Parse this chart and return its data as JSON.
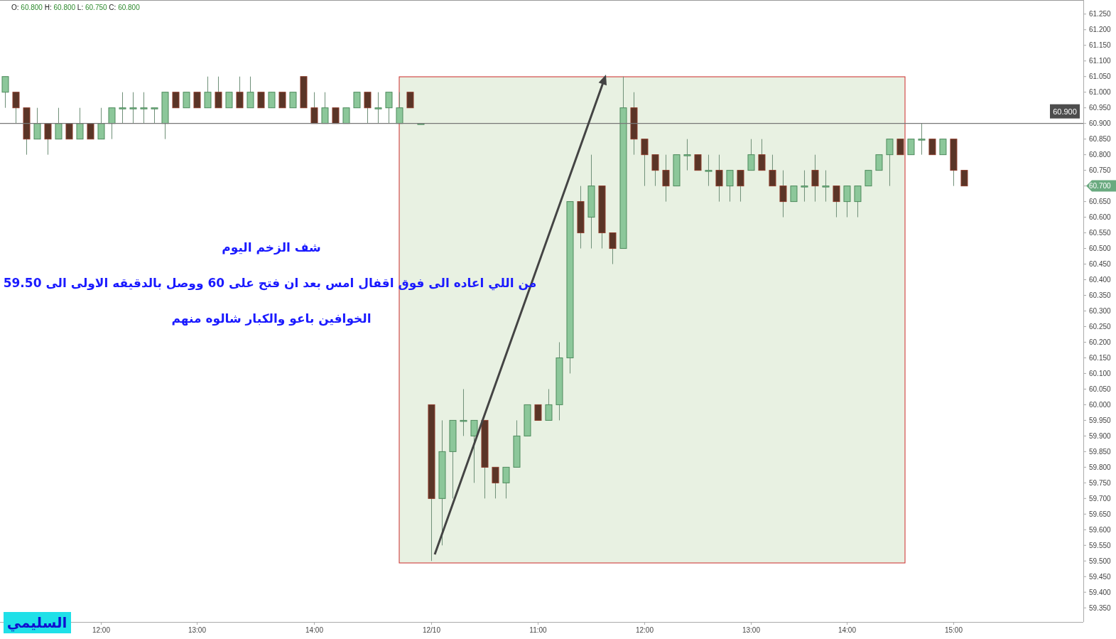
{
  "chart_data": {
    "type": "candlestick",
    "categories": [
      null,
      null,
      null,
      null,
      null,
      null,
      null,
      null,
      null,
      "12:00",
      null,
      null,
      null,
      null,
      null,
      null,
      null,
      null,
      "13:00",
      null,
      null,
      null,
      null,
      null,
      null,
      null,
      null,
      null,
      null,
      "14:00",
      null,
      null,
      null,
      null,
      null,
      null,
      null,
      null,
      null,
      null,
      "12/10",
      null,
      null,
      null,
      null,
      null,
      null,
      null,
      null,
      null,
      "11:00",
      null,
      null,
      null,
      null,
      null,
      null,
      null,
      null,
      null,
      "12:00",
      null,
      null,
      null,
      null,
      null,
      null,
      null,
      null,
      null,
      "13:00",
      null,
      null,
      null,
      null,
      null,
      null,
      null,
      null,
      "14:00",
      null,
      null,
      null,
      null,
      null,
      null,
      null,
      null,
      null,
      "15:00",
      null,
      null,
      null,
      null,
      null,
      null,
      null,
      null,
      null,
      null,
      null
    ],
    "ohlc": [
      [
        61.0,
        61.05,
        60.95,
        61.05
      ],
      [
        61.0,
        61.0,
        60.9,
        60.95
      ],
      [
        60.95,
        60.95,
        60.8,
        60.85
      ],
      [
        60.85,
        60.95,
        60.85,
        60.9
      ],
      [
        60.9,
        60.9,
        60.8,
        60.85
      ],
      [
        60.85,
        60.95,
        60.85,
        60.9
      ],
      [
        60.9,
        60.9,
        60.85,
        60.85
      ],
      [
        60.85,
        60.95,
        60.85,
        60.9
      ],
      [
        60.9,
        60.9,
        60.85,
        60.85
      ],
      [
        60.85,
        60.95,
        60.85,
        60.9
      ],
      [
        60.9,
        60.95,
        60.85,
        60.95
      ],
      [
        60.95,
        61.0,
        60.9,
        60.95
      ],
      [
        60.95,
        61.0,
        60.9,
        60.95
      ],
      [
        60.95,
        61.0,
        60.9,
        60.95
      ],
      [
        60.95,
        60.95,
        60.9,
        60.95
      ],
      [
        60.9,
        61.0,
        60.85,
        61.0
      ],
      [
        61.0,
        61.0,
        60.95,
        60.95
      ],
      [
        60.95,
        61.0,
        60.95,
        61.0
      ],
      [
        61.0,
        61.0,
        60.95,
        60.95
      ],
      [
        60.95,
        61.05,
        60.95,
        61.0
      ],
      [
        61.0,
        61.05,
        60.95,
        60.95
      ],
      [
        60.95,
        61.0,
        60.95,
        61.0
      ],
      [
        61.0,
        61.05,
        60.95,
        60.95
      ],
      [
        60.95,
        61.05,
        60.95,
        61.0
      ],
      [
        61.0,
        61.0,
        60.95,
        60.95
      ],
      [
        60.95,
        61.0,
        60.95,
        61.0
      ],
      [
        61.0,
        61.0,
        60.95,
        60.95
      ],
      [
        60.95,
        61.0,
        60.95,
        61.0
      ],
      [
        61.05,
        61.05,
        60.95,
        60.95
      ],
      [
        60.95,
        61.0,
        60.9,
        60.9
      ],
      [
        60.9,
        61.0,
        60.9,
        60.95
      ],
      [
        60.95,
        60.95,
        60.9,
        60.9
      ],
      [
        60.9,
        60.95,
        60.9,
        60.95
      ],
      [
        60.95,
        61.0,
        60.95,
        61.0
      ],
      [
        61.0,
        61.0,
        60.9,
        60.95
      ],
      [
        60.95,
        61.0,
        60.9,
        60.95
      ],
      [
        60.95,
        61.0,
        60.9,
        61.0
      ],
      [
        60.9,
        61.0,
        60.9,
        60.95
      ],
      [
        61.0,
        61.0,
        60.95,
        60.95
      ],
      [
        60.9,
        60.9,
        60.9,
        60.9
      ],
      [
        60.0,
        60.0,
        59.5,
        59.7
      ],
      [
        59.7,
        59.95,
        59.55,
        59.85
      ],
      [
        59.85,
        59.95,
        59.7,
        59.95
      ],
      [
        59.95,
        60.05,
        59.9,
        59.95
      ],
      [
        59.9,
        59.95,
        59.75,
        59.95
      ],
      [
        59.95,
        59.95,
        59.7,
        59.8
      ],
      [
        59.8,
        59.8,
        59.7,
        59.75
      ],
      [
        59.75,
        59.8,
        59.7,
        59.8
      ],
      [
        59.8,
        59.95,
        59.8,
        59.9
      ],
      [
        59.9,
        60.0,
        59.9,
        60.0
      ],
      [
        60.0,
        60.0,
        59.95,
        59.95
      ],
      [
        59.95,
        60.05,
        59.95,
        60.0
      ],
      [
        60.0,
        60.2,
        59.95,
        60.15
      ],
      [
        60.15,
        60.65,
        60.1,
        60.65
      ],
      [
        60.65,
        60.7,
        60.5,
        60.55
      ],
      [
        60.6,
        60.8,
        60.5,
        60.7
      ],
      [
        60.7,
        60.7,
        60.5,
        60.55
      ],
      [
        60.55,
        60.55,
        60.45,
        60.5
      ],
      [
        60.5,
        61.05,
        60.5,
        60.95
      ],
      [
        60.95,
        61.0,
        60.8,
        60.85
      ],
      [
        60.85,
        60.85,
        60.7,
        60.8
      ],
      [
        60.8,
        60.8,
        60.7,
        60.75
      ],
      [
        60.75,
        60.8,
        60.65,
        60.7
      ],
      [
        60.7,
        60.8,
        60.7,
        60.8
      ],
      [
        60.8,
        60.85,
        60.75,
        60.8
      ],
      [
        60.8,
        60.8,
        60.75,
        60.75
      ],
      [
        60.75,
        60.8,
        60.7,
        60.75
      ],
      [
        60.75,
        60.8,
        60.65,
        60.7
      ],
      [
        60.7,
        60.75,
        60.65,
        60.75
      ],
      [
        60.75,
        60.75,
        60.65,
        60.7
      ],
      [
        60.75,
        60.85,
        60.75,
        60.8
      ],
      [
        60.8,
        60.85,
        60.75,
        60.75
      ],
      [
        60.75,
        60.8,
        60.7,
        60.7
      ],
      [
        60.7,
        60.75,
        60.6,
        60.65
      ],
      [
        60.65,
        60.7,
        60.65,
        60.7
      ],
      [
        60.7,
        60.75,
        60.65,
        60.7
      ],
      [
        60.75,
        60.8,
        60.65,
        60.7
      ],
      [
        60.7,
        60.75,
        60.65,
        60.7
      ],
      [
        60.7,
        60.7,
        60.6,
        60.65
      ],
      [
        60.65,
        60.7,
        60.6,
        60.7
      ],
      [
        60.65,
        60.7,
        60.6,
        60.7
      ],
      [
        60.7,
        60.75,
        60.7,
        60.75
      ],
      [
        60.75,
        60.8,
        60.75,
        60.8
      ],
      [
        60.8,
        60.85,
        60.7,
        60.85
      ],
      [
        60.85,
        60.85,
        60.8,
        60.8
      ],
      [
        60.8,
        60.85,
        60.8,
        60.85
      ],
      [
        60.85,
        60.9,
        60.8,
        60.85
      ],
      [
        60.85,
        60.85,
        60.8,
        60.8
      ],
      [
        60.8,
        60.85,
        60.8,
        60.85
      ],
      [
        60.85,
        60.85,
        60.7,
        60.75
      ],
      [
        60.75,
        60.75,
        60.7,
        60.7
      ],
      null,
      null,
      null,
      null,
      null,
      null,
      null,
      null,
      null,
      null
    ],
    "ylim": [
      59.305,
      61.295
    ],
    "yticks": [
      {
        "value": 59.35,
        "label": "59.350"
      },
      {
        "value": 59.4,
        "label": "59.400"
      },
      {
        "value": 59.45,
        "label": "59.450"
      },
      {
        "value": 59.5,
        "label": "59.500"
      },
      {
        "value": 59.55,
        "label": "59.550"
      },
      {
        "value": 59.6,
        "label": "59.600"
      },
      {
        "value": 59.65,
        "label": "59.650"
      },
      {
        "value": 59.7,
        "label": "59.700"
      },
      {
        "value": 59.75,
        "label": "59.750"
      },
      {
        "value": 59.8,
        "label": "59.800"
      },
      {
        "value": 59.85,
        "label": "59.850"
      },
      {
        "value": 59.9,
        "label": "59.900"
      },
      {
        "value": 59.95,
        "label": "59.950"
      },
      {
        "value": 60.0,
        "label": "60.000"
      },
      {
        "value": 60.05,
        "label": "60.050"
      },
      {
        "value": 60.1,
        "label": "60.100"
      },
      {
        "value": 60.15,
        "label": "60.150"
      },
      {
        "value": 60.2,
        "label": "60.200"
      },
      {
        "value": 60.25,
        "label": "60.250"
      },
      {
        "value": 60.3,
        "label": "60.300"
      },
      {
        "value": 60.35,
        "label": "60.350"
      },
      {
        "value": 60.4,
        "label": "60.400"
      },
      {
        "value": 60.45,
        "label": "60.450"
      },
      {
        "value": 60.5,
        "label": "60.500"
      },
      {
        "value": 60.55,
        "label": "60.550"
      },
      {
        "value": 60.6,
        "label": "60.600"
      },
      {
        "value": 60.65,
        "label": "60.650"
      },
      {
        "value": 60.7,
        "label": "60.700"
      },
      {
        "value": 60.75,
        "label": "60.750"
      },
      {
        "value": 60.8,
        "label": "60.800"
      },
      {
        "value": 60.85,
        "label": "60.850"
      },
      {
        "value": 60.9,
        "label": "60.900"
      },
      {
        "value": 60.95,
        "label": "60.950"
      },
      {
        "value": 61.0,
        "label": "61.000"
      },
      {
        "value": 61.05,
        "label": "61.050"
      },
      {
        "value": 61.1,
        "label": "61.100"
      },
      {
        "value": 61.15,
        "label": "61.150"
      },
      {
        "value": 61.2,
        "label": "61.200"
      },
      {
        "value": 61.25,
        "label": "61.250"
      }
    ],
    "ref_lines": [
      {
        "axis": "y",
        "value": 60.9,
        "label": "60.900",
        "color": "#777777"
      }
    ],
    "annotations": [
      "O: 60.800  H: 60.800  L: 60.750  C: 60.800",
      "شف الزخم اليوم",
      "من اللي اعاده الى فوق اقفال امس بعد ان فتح على 60 ووصل بالدقيقه الاولى الى 59.50",
      "الخوافين باعو والكبار شالوه منهم",
      "السليمي"
    ]
  }
}
